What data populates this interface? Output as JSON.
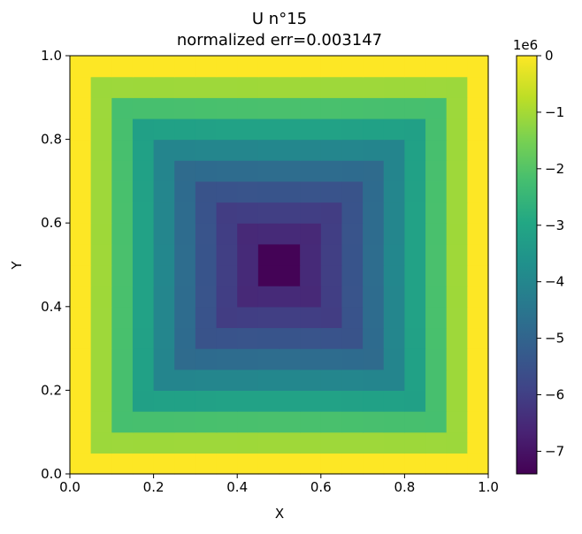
{
  "chart_data": {
    "type": "heatmap",
    "title_line1": "U n°15",
    "title_line2": "normalized err=0.003147",
    "xlabel": "X",
    "ylabel": "Y",
    "xlim": [
      0.0,
      1.0
    ],
    "ylim": [
      0.0,
      1.0
    ],
    "x_ticks": [
      "0.0",
      "0.2",
      "0.4",
      "0.6",
      "0.8",
      "1.0"
    ],
    "y_ticks": [
      "0.0",
      "0.2",
      "0.4",
      "0.6",
      "0.8",
      "1.0"
    ],
    "grid": false,
    "colormap": "viridis",
    "grid_size": 20,
    "cell_extent": "each cell spans 0.05 in X and Y; border cells equal 0",
    "value_min": -7400000,
    "value_max": 0,
    "colorbar": {
      "offset_label": "1e6",
      "ticks": [
        "0",
        "−1",
        "−2",
        "−3",
        "−4",
        "−5",
        "−6",
        "−7"
      ],
      "tick_values": [
        0,
        -1,
        -2,
        -3,
        -4,
        -5,
        -6,
        -7
      ],
      "range": [
        -7.4,
        0
      ]
    },
    "approx_ring_values_1e6": [
      0,
      -1.1,
      -2.2,
      -3.2,
      -4.1,
      -4.9,
      -5.6,
      -6.2,
      -6.7,
      -7.1
    ],
    "peak_value_1e6": -7.35
  }
}
